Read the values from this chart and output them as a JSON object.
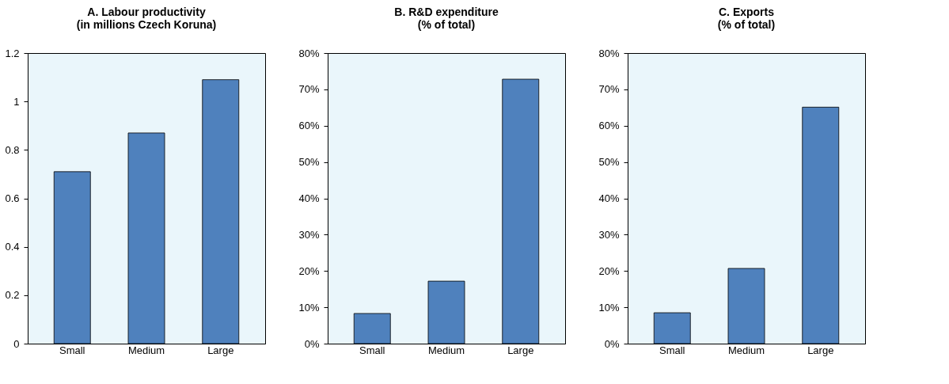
{
  "chart_data": [
    {
      "type": "bar",
      "title": "A. Labour productivity\n(in millions Czech Koruna)",
      "categories": [
        "Small",
        "Medium",
        "Large"
      ],
      "values": [
        0.71,
        0.87,
        1.09
      ],
      "color": "#4f81bd",
      "ylim": [
        0,
        1.2
      ],
      "yticks": [
        0,
        0.2,
        0.4,
        0.6,
        0.8,
        1,
        1.2
      ]
    },
    {
      "type": "bar",
      "title": "B. R&D expenditure\n(% of total)",
      "categories": [
        "Small",
        "Medium",
        "Large"
      ],
      "values": [
        8.3,
        17.2,
        72.8
      ],
      "color": "#4f81bd",
      "ylim": [
        0,
        80
      ],
      "yticks": [
        {
          "value": 0,
          "label": "0%"
        },
        {
          "value": 10,
          "label": "10%"
        },
        {
          "value": 20,
          "label": "20%"
        },
        {
          "value": 30,
          "label": "30%"
        },
        {
          "value": 40,
          "label": "40%"
        },
        {
          "value": 50,
          "label": "50%"
        },
        {
          "value": 60,
          "label": "60%"
        },
        {
          "value": 70,
          "label": "70%"
        },
        {
          "value": 80,
          "label": "80%"
        }
      ]
    },
    {
      "type": "bar",
      "title": "C. Exports\n(% of total)",
      "categories": [
        "Small",
        "Medium",
        "Large"
      ],
      "values": [
        8.5,
        20.7,
        65.1
      ],
      "color": "#4f81bd",
      "ylim": [
        0,
        80
      ],
      "yticks": [
        {
          "value": 0,
          "label": "0%"
        },
        {
          "value": 10,
          "label": "10%"
        },
        {
          "value": 20,
          "label": "20%"
        },
        {
          "value": 30,
          "label": "30%"
        },
        {
          "value": 40,
          "label": "40%"
        },
        {
          "value": 50,
          "label": "50%"
        },
        {
          "value": 60,
          "label": "60%"
        },
        {
          "value": 70,
          "label": "70%"
        },
        {
          "value": 80,
          "label": "80%"
        }
      ]
    }
  ]
}
